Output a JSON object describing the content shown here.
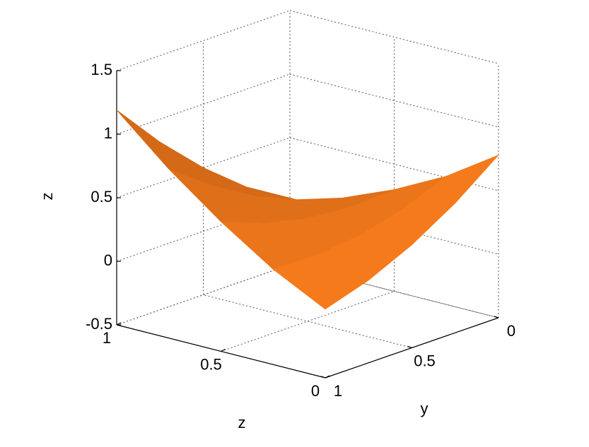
{
  "chart_data": {
    "type": "surface3d",
    "xlabel": "z",
    "ylabel": "y",
    "zlabel": "z",
    "xlim": [
      0,
      1
    ],
    "xticks": [
      0,
      0.5,
      1
    ],
    "ylim": [
      0,
      1
    ],
    "yticks": [
      0,
      0.5,
      1
    ],
    "zlim": [
      -0.5,
      1.5
    ],
    "zticks": [
      -0.5,
      0,
      0.5,
      1,
      1.5
    ],
    "grid": true,
    "color": "#f57a1c",
    "x": [
      0,
      0.25,
      0.5,
      0.75,
      1
    ],
    "y": [
      0,
      0.25,
      0.5,
      0.75,
      1
    ],
    "z": [
      [
        0.78,
        0.51,
        0.3,
        0.13,
        0.01
      ],
      [
        0.52,
        0.37,
        0.28,
        0.23,
        0.23
      ],
      [
        0.31,
        0.28,
        0.31,
        0.38,
        0.5
      ],
      [
        0.15,
        0.24,
        0.39,
        0.58,
        0.82
      ],
      [
        0.04,
        0.25,
        0.52,
        0.83,
        1.19
      ]
    ]
  }
}
